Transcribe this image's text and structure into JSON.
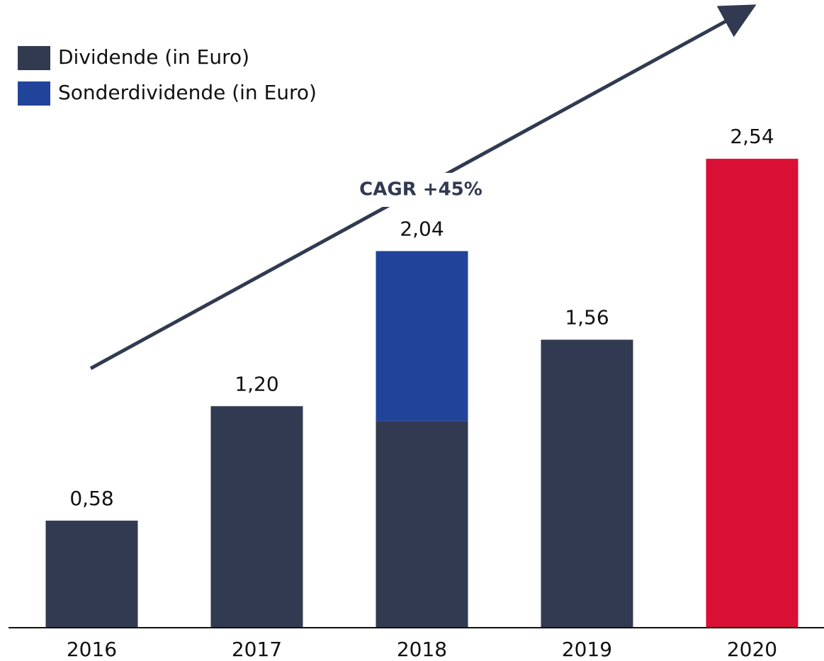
{
  "chart_data": {
    "type": "stacked_bar",
    "categories": [
      "2016",
      "2017",
      "2018",
      "2019",
      "2020"
    ],
    "series": [
      {
        "name": "Dividende (in Euro)",
        "color": "#313a50",
        "colors": [
          "#313a50",
          "#313a50",
          "#313a50",
          "#313a50",
          "#d90f36"
        ],
        "values": [
          0.58,
          1.2,
          1.12,
          1.56,
          2.54
        ]
      },
      {
        "name": "Sonderdividende (in Euro)",
        "color": "#21449a",
        "values": [
          0,
          0,
          0.92,
          0,
          0
        ]
      }
    ],
    "total_labels": [
      "0,58",
      "1,20",
      "2,04",
      "1,56",
      "2,54"
    ],
    "annotation": "CAGR +45%",
    "ylim": [
      0,
      3.4
    ],
    "legend": "top-left"
  }
}
